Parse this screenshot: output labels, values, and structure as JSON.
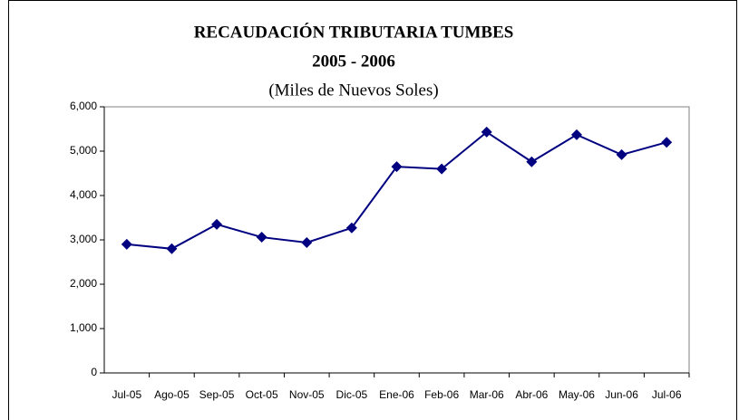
{
  "chart_data": {
    "type": "line",
    "title": "RECAUDACIÓN TRIBUTARIA  TUMBES",
    "subtitle": "2005 - 2006",
    "unit_label": "(Miles de Nuevos Soles)",
    "categories": [
      "Jul-05",
      "Ago-05",
      "Sep-05",
      "Oct-05",
      "Nov-05",
      "Dic-05",
      "Ene-06",
      "Feb-06",
      "Mar-06",
      "Abr-06",
      "May-06",
      "Jun-06",
      "Jul-06"
    ],
    "values": [
      2900,
      2800,
      3350,
      3060,
      2940,
      3270,
      4650,
      4600,
      5430,
      4760,
      5370,
      4920,
      5200
    ],
    "color": "#000080",
    "ylim": [
      0,
      6000
    ],
    "yticks": [
      0,
      {
        "value": 1000,
        "label": "1,000"
      },
      {
        "value": 2000,
        "label": "2,000"
      },
      {
        "value": 3000,
        "label": "3,000"
      },
      {
        "value": 4000,
        "label": "4,000"
      },
      {
        "value": 5000,
        "label": "5,000"
      },
      {
        "value": 6000,
        "label": "6,000"
      }
    ],
    "grid": false
  }
}
